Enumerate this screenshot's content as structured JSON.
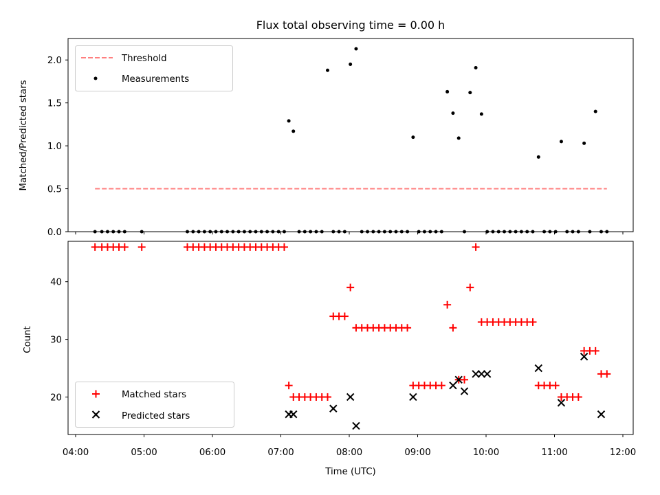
{
  "chart_data": [
    {
      "type": "scatter",
      "title": "Flux total observing time = 0.00 h",
      "ylabel": "Matched/Predicted stars",
      "xlabel": "",
      "xlim": [
        "04:00",
        "12:00"
      ],
      "ylim": [
        0,
        2.25
      ],
      "yticks": [
        "0.0",
        "0.5",
        "1.0",
        "1.5",
        "2.0"
      ],
      "legend_position": "upper-left",
      "series": [
        {
          "name": "Threshold",
          "kind": "dashed-line",
          "color": "#ff7f7f",
          "x": [
            "04:17",
            "11:46"
          ],
          "y": [
            0.5,
            0.5
          ]
        },
        {
          "name": "Measurements",
          "kind": "points",
          "color": "#000000",
          "x": [
            "04:17",
            "04:23",
            "04:28",
            "04:33",
            "04:38",
            "04:43",
            "04:58",
            "05:38",
            "05:43",
            "05:48",
            "05:53",
            "05:58",
            "06:03",
            "06:08",
            "06:13",
            "06:18",
            "06:23",
            "06:28",
            "06:33",
            "06:38",
            "06:43",
            "06:48",
            "06:53",
            "06:58",
            "07:03",
            "07:07",
            "07:11",
            "07:16",
            "07:21",
            "07:26",
            "07:31",
            "07:36",
            "07:41",
            "07:46",
            "07:51",
            "07:56",
            "08:01",
            "08:06",
            "08:11",
            "08:16",
            "08:21",
            "08:26",
            "08:31",
            "08:36",
            "08:41",
            "08:46",
            "08:51",
            "08:56",
            "09:01",
            "09:06",
            "09:11",
            "09:16",
            "09:21",
            "09:26",
            "09:31",
            "09:36",
            "09:41",
            "09:46",
            "09:51",
            "09:56",
            "10:01",
            "10:06",
            "10:11",
            "10:16",
            "10:21",
            "10:26",
            "10:31",
            "10:36",
            "10:41",
            "10:46",
            "10:51",
            "10:56",
            "11:01",
            "11:06",
            "11:11",
            "11:16",
            "11:21",
            "11:26",
            "11:31",
            "11:36",
            "11:41",
            "11:46"
          ],
          "y": [
            0,
            0,
            0,
            0,
            0,
            0,
            0,
            0,
            0,
            0,
            0,
            0,
            0,
            0,
            0,
            0,
            0,
            0,
            0,
            0,
            0,
            0,
            0,
            0,
            0,
            1.29,
            1.17,
            0,
            0,
            0,
            0,
            0,
            1.88,
            0,
            0,
            0,
            1.95,
            2.13,
            0,
            0,
            0,
            0,
            0,
            0,
            0,
            0,
            0,
            1.1,
            0,
            0,
            0,
            0,
            0,
            1.63,
            1.38,
            1.09,
            0,
            1.62,
            1.91,
            1.37,
            0,
            0,
            0,
            0,
            0,
            0,
            0,
            0,
            0,
            0.87,
            0,
            0,
            0,
            1.05,
            0,
            0,
            0,
            1.03,
            0,
            1.4,
            0,
            0
          ]
        }
      ]
    },
    {
      "type": "scatter",
      "title": "",
      "xlabel": "Time (UTC)",
      "ylabel": "Count",
      "xlim": [
        "04:00",
        "12:00"
      ],
      "ylim": [
        13.5,
        47
      ],
      "xticks": [
        "04:00",
        "05:00",
        "06:00",
        "07:00",
        "08:00",
        "09:00",
        "10:00",
        "11:00",
        "12:00"
      ],
      "yticks": [
        "20",
        "30",
        "40"
      ],
      "legend_position": "lower-left",
      "series": [
        {
          "name": "Matched stars",
          "marker": "plus",
          "color": "#ff0000",
          "x": [
            "04:17",
            "04:23",
            "04:28",
            "04:33",
            "04:38",
            "04:43",
            "04:58",
            "05:38",
            "05:43",
            "05:48",
            "05:53",
            "05:58",
            "06:03",
            "06:08",
            "06:13",
            "06:18",
            "06:23",
            "06:28",
            "06:33",
            "06:38",
            "06:43",
            "06:48",
            "06:53",
            "06:58",
            "07:03",
            "07:07",
            "07:11",
            "07:16",
            "07:21",
            "07:26",
            "07:31",
            "07:36",
            "07:41",
            "07:46",
            "07:51",
            "07:56",
            "08:01",
            "08:06",
            "08:11",
            "08:16",
            "08:21",
            "08:26",
            "08:31",
            "08:36",
            "08:41",
            "08:46",
            "08:51",
            "08:56",
            "09:01",
            "09:06",
            "09:11",
            "09:16",
            "09:21",
            "09:26",
            "09:31",
            "09:36",
            "09:41",
            "09:46",
            "09:51",
            "09:56",
            "10:01",
            "10:06",
            "10:11",
            "10:16",
            "10:21",
            "10:26",
            "10:31",
            "10:36",
            "10:41",
            "10:46",
            "10:51",
            "10:56",
            "11:01",
            "11:06",
            "11:11",
            "11:16",
            "11:21",
            "11:26",
            "11:31",
            "11:36",
            "11:41",
            "11:46"
          ],
          "y": [
            46,
            46,
            46,
            46,
            46,
            46,
            46,
            46,
            46,
            46,
            46,
            46,
            46,
            46,
            46,
            46,
            46,
            46,
            46,
            46,
            46,
            46,
            46,
            46,
            46,
            22,
            20,
            20,
            20,
            20,
            20,
            20,
            20,
            34,
            34,
            34,
            39,
            32,
            32,
            32,
            32,
            32,
            32,
            32,
            32,
            32,
            32,
            22,
            22,
            22,
            22,
            22,
            22,
            36,
            32,
            23,
            23,
            39,
            46,
            33,
            33,
            33,
            33,
            33,
            33,
            33,
            33,
            33,
            33,
            22,
            22,
            22,
            22,
            20,
            20,
            20,
            20,
            28,
            28,
            28,
            24,
            24
          ]
        },
        {
          "name": "Predicted stars",
          "marker": "x",
          "color": "#000000",
          "x": [
            "07:07",
            "07:11",
            "07:46",
            "08:01",
            "08:06",
            "08:56",
            "09:31",
            "09:36",
            "09:41",
            "09:51",
            "09:56",
            "10:01",
            "10:46",
            "11:06",
            "11:26",
            "11:41"
          ],
          "y": [
            17,
            17,
            18,
            20,
            15,
            20,
            22,
            23,
            21,
            24,
            24,
            24,
            25,
            19,
            27,
            17
          ]
        }
      ]
    }
  ]
}
